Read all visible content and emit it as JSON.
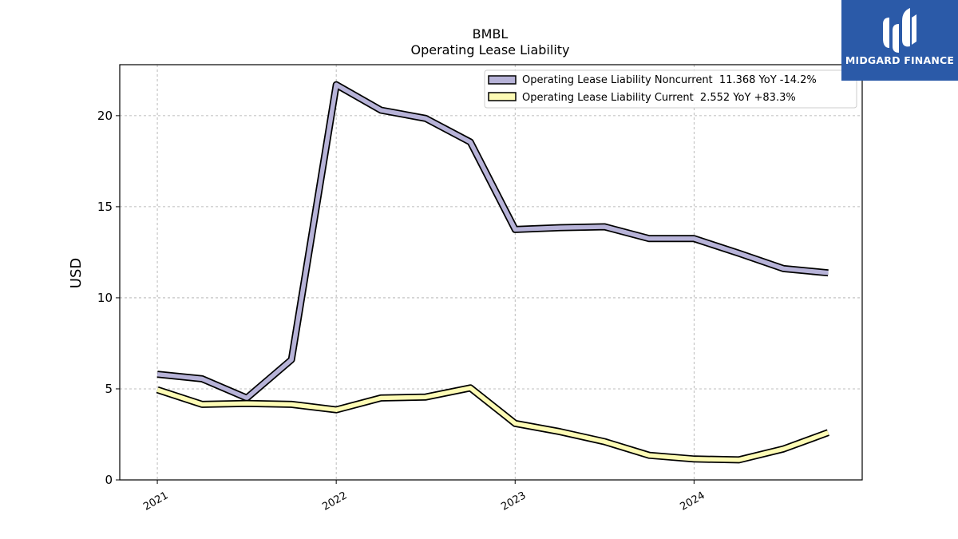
{
  "brand": {
    "name": "MIDGARD FINANCE",
    "color": "#2b5aa8"
  },
  "chart_data": {
    "type": "line",
    "title": "BMBL",
    "subtitle": "Operating Lease Liability",
    "ylabel": "USD",
    "xlabel": "",
    "ylim": [
      0,
      22.8
    ],
    "xlim": [
      2020.79,
      2024.94
    ],
    "yticks": [
      0,
      5,
      10,
      15,
      20
    ],
    "xticks": [
      {
        "value": 2021,
        "label": "2021"
      },
      {
        "value": 2022,
        "label": "2022"
      },
      {
        "value": 2023,
        "label": "2023"
      },
      {
        "value": 2024,
        "label": "2024"
      }
    ],
    "grid": true,
    "legend_position": "top-right",
    "x": [
      2021.0,
      2021.25,
      2021.5,
      2021.75,
      2022.0,
      2022.25,
      2022.5,
      2022.75,
      2023.0,
      2023.25,
      2023.5,
      2023.75,
      2024.0,
      2024.25,
      2024.5,
      2024.75
    ],
    "series": [
      {
        "name": "Operating Lease Liability Noncurrent  11.368 YoY -14.2%",
        "color": "#b7b3d8",
        "values": [
          5.8,
          5.55,
          4.5,
          6.6,
          21.7,
          20.3,
          19.85,
          18.55,
          13.75,
          13.85,
          13.9,
          13.25,
          13.25,
          12.45,
          11.6,
          11.37
        ]
      },
      {
        "name": "Operating Lease Liability Current  2.552 YoY +83.3%",
        "color": "#fdfbb5",
        "values": [
          4.95,
          4.15,
          4.2,
          4.15,
          3.85,
          4.5,
          4.55,
          5.05,
          3.1,
          2.65,
          2.1,
          1.35,
          1.15,
          1.1,
          1.7,
          2.6
        ]
      }
    ]
  }
}
